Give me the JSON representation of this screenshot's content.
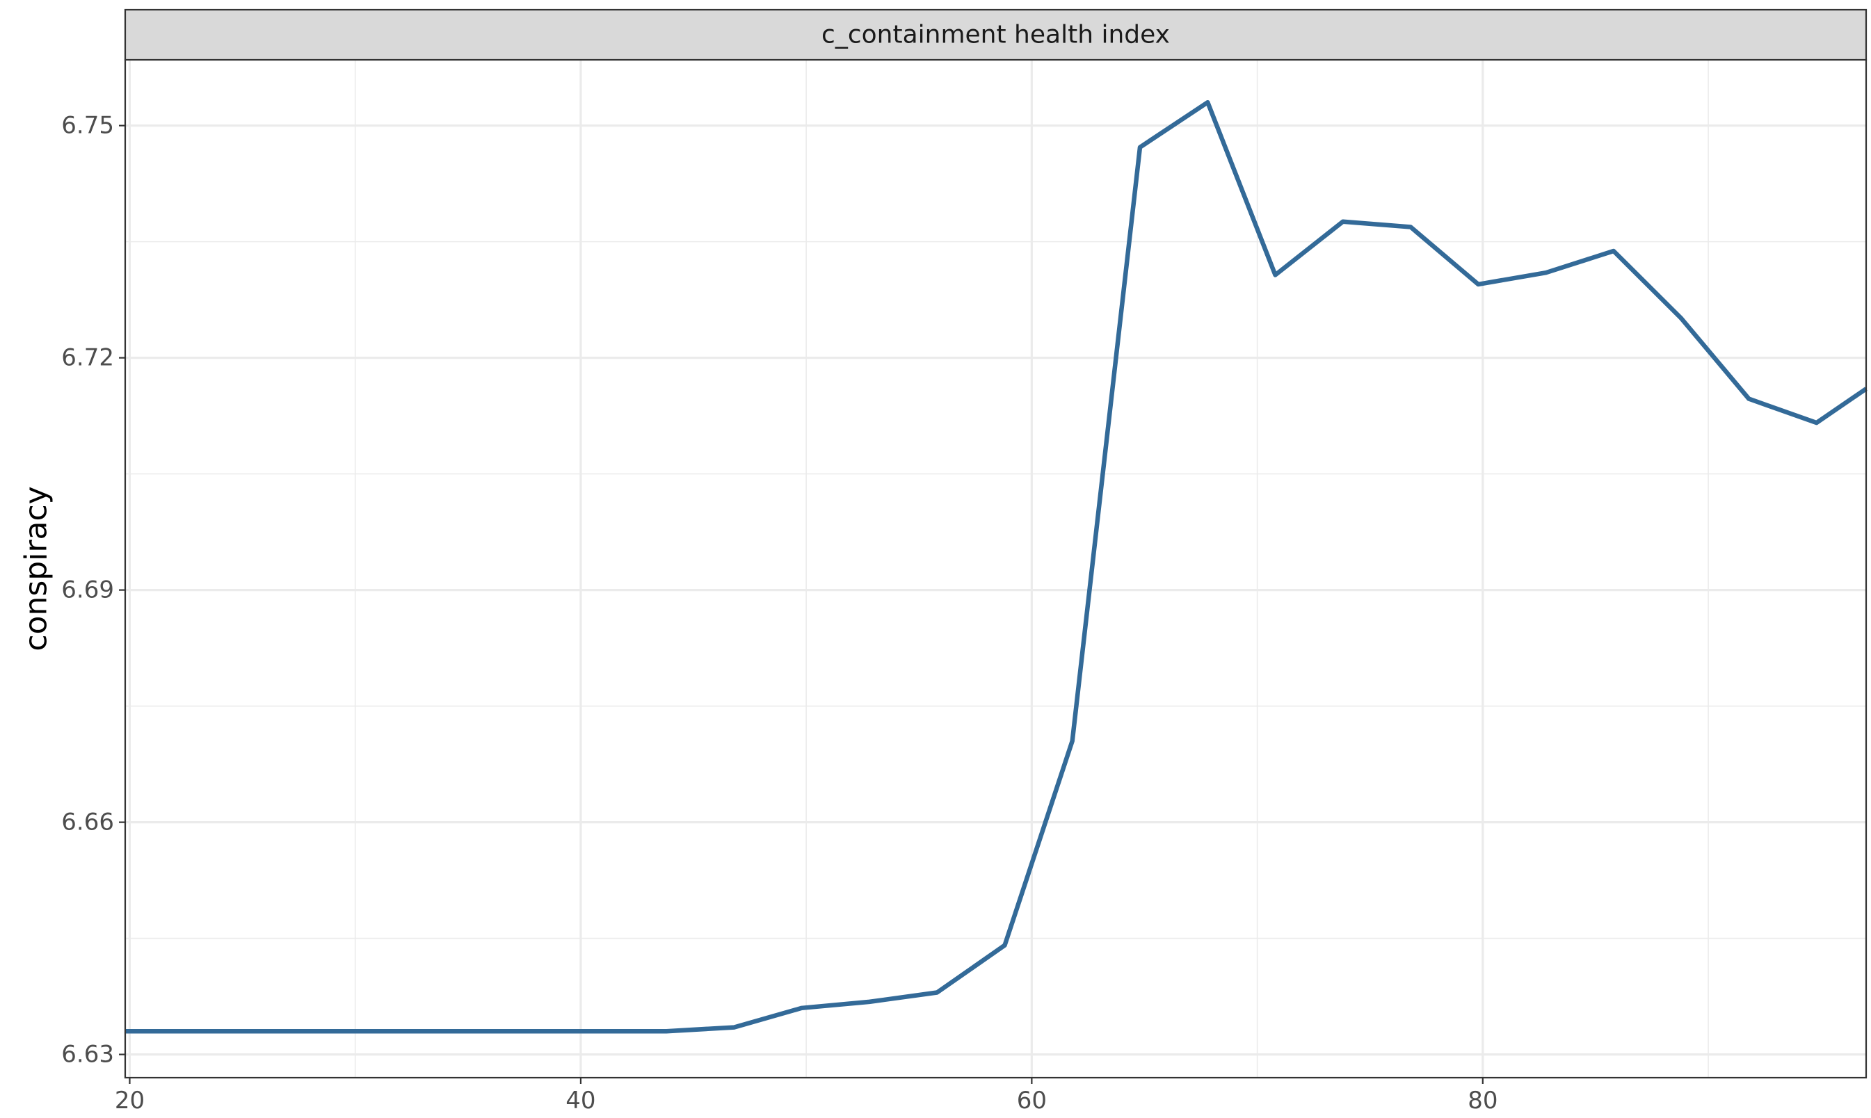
{
  "chart_data": {
    "type": "line",
    "facet_label": "c_containment health index",
    "xlabel": "",
    "ylabel": "conspiracy",
    "xlim": [
      19.8,
      97.0
    ],
    "ylim": [
      6.627,
      6.7585
    ],
    "x_ticks": [
      20,
      40,
      60,
      80
    ],
    "x_tick_labels": [
      "20",
      "40",
      "60",
      "80"
    ],
    "x_minor_ticks": [
      30,
      50,
      70,
      90
    ],
    "y_ticks": [
      6.63,
      6.66,
      6.69,
      6.72,
      6.75
    ],
    "y_tick_labels": [
      "6.63",
      "6.66",
      "6.69",
      "6.72",
      "6.75"
    ],
    "y_minor_ticks": [
      6.645,
      6.675,
      6.705,
      6.735
    ],
    "grid": true,
    "legend": "none",
    "colors": {
      "line": "#336a98",
      "strip_fill": "#d9d9d9",
      "panel_border": "#333333"
    },
    "series": [
      {
        "x": [
          19.8,
          22.8,
          25.8,
          28.8,
          31.8,
          34.8,
          37.8,
          40.8,
          43.8,
          46.8,
          49.8,
          52.8,
          55.8,
          58.8,
          61.8,
          64.8,
          67.8,
          70.8,
          73.8,
          76.8,
          79.8,
          82.8,
          85.8,
          88.8,
          91.8,
          94.8,
          97.0
        ],
        "y": [
          6.633,
          6.633,
          6.633,
          6.633,
          6.633,
          6.633,
          6.633,
          6.633,
          6.633,
          6.6335,
          6.636,
          6.6368,
          6.638,
          6.6441,
          6.6705,
          6.7472,
          6.753,
          6.7307,
          6.7376,
          6.7369,
          6.7295,
          6.731,
          6.7338,
          6.7251,
          6.7147,
          6.7116,
          6.716
        ]
      }
    ]
  }
}
